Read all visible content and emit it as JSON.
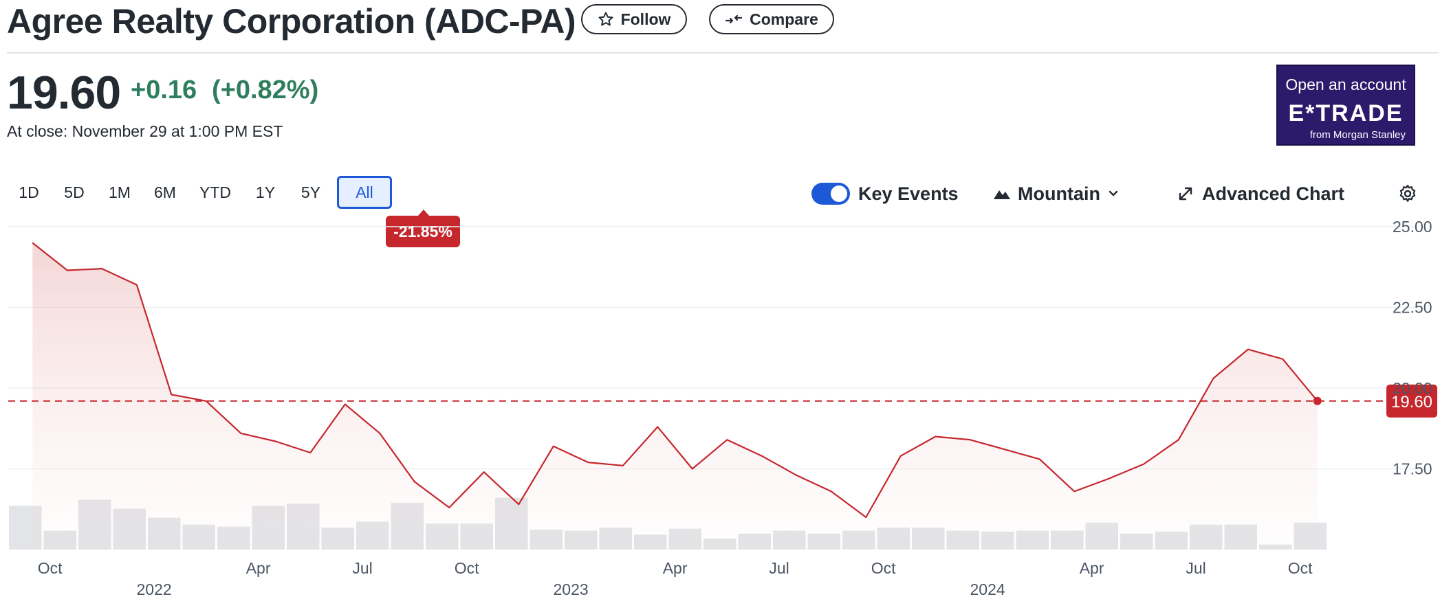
{
  "header": {
    "title": "Agree Realty Corporation (ADC-PA)",
    "follow_label": "Follow",
    "compare_label": "Compare"
  },
  "quote": {
    "price": "19.60",
    "change": "+0.16",
    "change_pct": "(+0.82%)",
    "close_text": "At close: November 29 at 1:00 PM EST",
    "change_color": "#2f7d5f"
  },
  "ad": {
    "open_label": "Open an account",
    "brand": "E*TRADE",
    "sub": "from Morgan Stanley"
  },
  "ranges": [
    "1D",
    "5D",
    "1M",
    "6M",
    "YTD",
    "1Y",
    "5Y",
    "All"
  ],
  "active_range": "All",
  "range_change": "-21.85%",
  "toolbar": {
    "key_events_label": "Key Events",
    "key_events_on": true,
    "chart_type_label": "Mountain",
    "advanced_label": "Advanced Chart"
  },
  "chart_data": {
    "type": "area",
    "title": "",
    "xlabel": "",
    "ylabel": "",
    "ylim": [
      15.0,
      25.0
    ],
    "yticks": [
      "25.00",
      "22.50",
      "20.00",
      "17.50"
    ],
    "x_tick_labels": [
      "Oct",
      "Apr",
      "Jul",
      "Oct",
      "Apr",
      "Jul",
      "Oct",
      "Apr",
      "Jul",
      "Oct"
    ],
    "year_labels": [
      "2022",
      "2023",
      "2024"
    ],
    "series": [
      {
        "values": [
          24.5,
          23.65,
          23.7,
          23.2,
          19.8,
          19.6,
          18.6,
          18.35,
          18.0,
          19.5,
          18.6,
          17.1,
          16.3,
          17.4,
          16.4,
          18.2,
          17.7,
          17.6,
          18.8,
          17.5,
          18.4,
          17.9,
          17.3,
          16.8,
          16.0,
          17.9,
          18.5,
          18.4,
          18.1,
          17.8,
          16.8,
          17.2,
          17.65,
          18.4,
          20.3,
          21.2,
          20.9,
          19.6
        ]
      }
    ],
    "volume": [
      0.44,
      0.19,
      0.5,
      0.41,
      0.32,
      0.25,
      0.23,
      0.44,
      0.46,
      0.22,
      0.28,
      0.47,
      0.26,
      0.26,
      0.52,
      0.2,
      0.19,
      0.22,
      0.15,
      0.21,
      0.11,
      0.16,
      0.19,
      0.16,
      0.19,
      0.22,
      0.22,
      0.19,
      0.18,
      0.19,
      0.19,
      0.27,
      0.16,
      0.18,
      0.25,
      0.25,
      0.05,
      0.27
    ],
    "last_value_label": "19.60",
    "reference_value": 19.6,
    "line_color": "#c5272d",
    "grid": true
  }
}
